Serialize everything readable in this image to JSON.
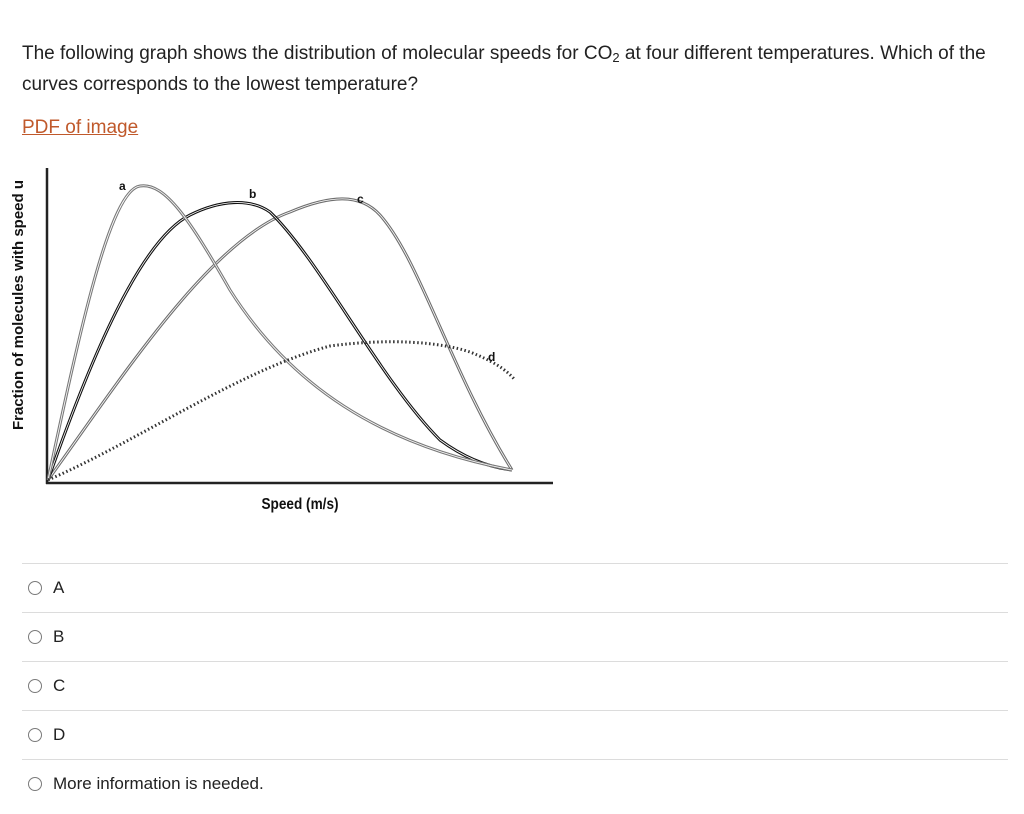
{
  "question": {
    "text_before": "The following graph shows the distribution of molecular speeds for CO",
    "subscript": "2",
    "text_after": " at four different temperatures. Which of the curves corresponds to the lowest temperature?"
  },
  "pdf_link": "PDF of image",
  "figure": {
    "ylabel": "Fraction of molecules with speed u",
    "xlabel": "Speed (m/s)",
    "curve_labels": {
      "a": "a",
      "b": "b",
      "c": "c",
      "d": "d"
    }
  },
  "options": [
    {
      "label": "A"
    },
    {
      "label": "B"
    },
    {
      "label": "C"
    },
    {
      "label": "D"
    },
    {
      "label": "More information is needed."
    }
  ]
}
